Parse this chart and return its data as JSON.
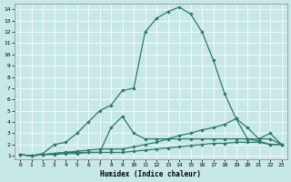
{
  "xlabel": "Humidex (Indice chaleur)",
  "bg_color": "#c8e8e8",
  "grid_color": "#ffffff",
  "line_color": "#2a7a6a",
  "xlim": [
    -0.5,
    23.5
  ],
  "ylim": [
    0.7,
    14.5
  ],
  "xticks": [
    0,
    1,
    2,
    3,
    4,
    5,
    6,
    7,
    8,
    9,
    10,
    11,
    12,
    13,
    14,
    15,
    16,
    17,
    18,
    19,
    20,
    21,
    22,
    23
  ],
  "yticks": [
    1,
    2,
    3,
    4,
    5,
    6,
    7,
    8,
    9,
    10,
    11,
    12,
    13,
    14
  ],
  "line1_x": [
    0,
    1,
    2,
    3,
    4,
    5,
    6,
    7,
    8,
    9,
    10,
    11,
    12,
    13,
    14,
    15,
    16,
    17,
    18,
    19,
    20,
    21,
    22,
    23
  ],
  "line1_y": [
    1.1,
    1.0,
    1.2,
    2.0,
    2.2,
    3.0,
    4.0,
    5.0,
    5.5,
    6.8,
    7.0,
    12.0,
    13.2,
    13.8,
    14.2,
    13.6,
    12.0,
    9.5,
    6.5,
    4.3,
    2.5,
    2.3,
    2.0,
    2.0
  ],
  "line2_x": [
    0,
    1,
    2,
    3,
    4,
    5,
    6,
    7,
    8,
    9,
    10,
    11,
    12,
    13,
    14,
    15,
    16,
    17,
    18,
    19,
    20,
    21,
    22,
    23
  ],
  "line2_y": [
    1.1,
    1.0,
    1.1,
    1.2,
    1.3,
    1.3,
    1.3,
    1.3,
    3.5,
    4.5,
    3.0,
    2.5,
    2.5,
    2.5,
    2.5,
    2.5,
    2.5,
    2.5,
    2.5,
    2.5,
    2.5,
    2.5,
    2.5,
    2.0
  ],
  "line3_x": [
    0,
    1,
    2,
    3,
    4,
    5,
    6,
    7,
    8,
    9,
    10,
    11,
    12,
    13,
    14,
    15,
    16,
    17,
    18,
    19,
    20,
    21,
    22,
    23
  ],
  "line3_y": [
    1.1,
    1.0,
    1.1,
    1.2,
    1.3,
    1.4,
    1.5,
    1.6,
    1.6,
    1.6,
    1.8,
    2.0,
    2.2,
    2.5,
    2.8,
    3.0,
    3.3,
    3.5,
    3.8,
    4.3,
    3.5,
    2.5,
    3.0,
    2.0
  ],
  "line4_x": [
    0,
    1,
    2,
    3,
    4,
    5,
    6,
    7,
    8,
    9,
    10,
    11,
    12,
    13,
    14,
    15,
    16,
    17,
    18,
    19,
    20,
    21,
    22,
    23
  ],
  "line4_y": [
    1.1,
    1.0,
    1.1,
    1.1,
    1.2,
    1.2,
    1.3,
    1.3,
    1.3,
    1.3,
    1.4,
    1.5,
    1.6,
    1.7,
    1.8,
    1.9,
    2.0,
    2.1,
    2.1,
    2.2,
    2.2,
    2.2,
    2.0,
    2.0
  ]
}
